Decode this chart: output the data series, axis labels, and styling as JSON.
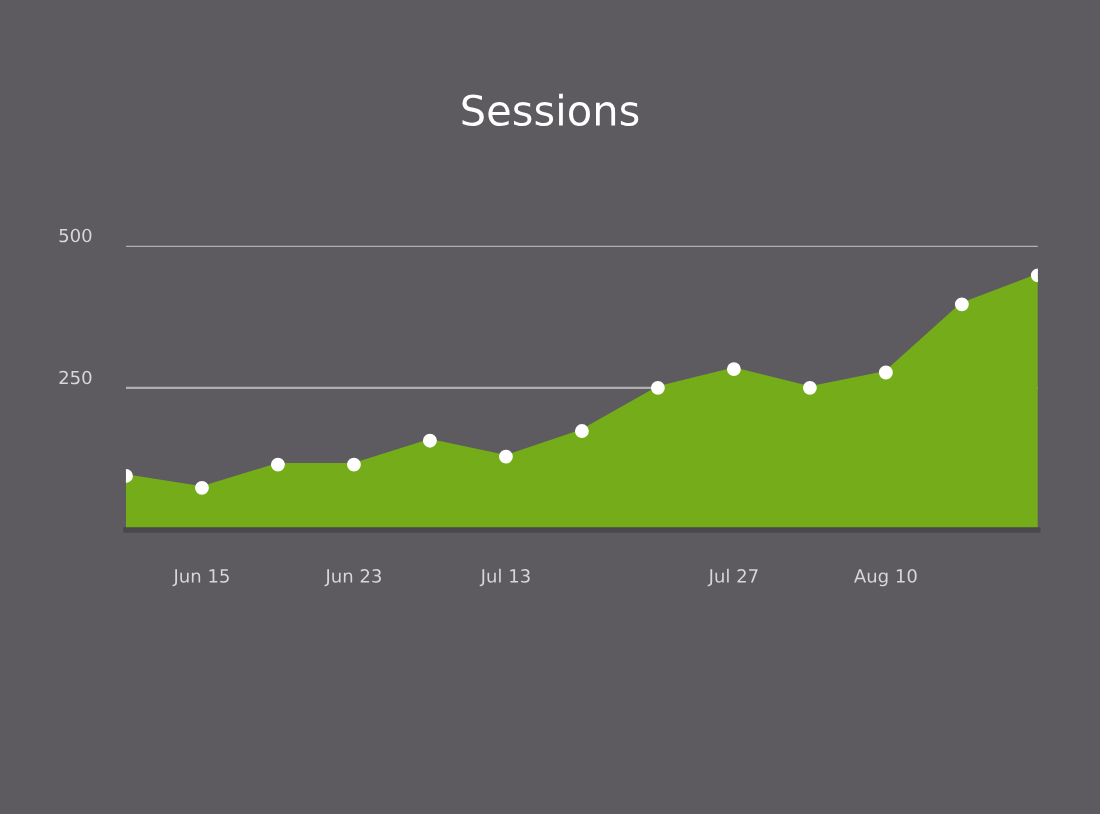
{
  "chart_data": {
    "type": "area",
    "title": "Sessions",
    "categories": [
      null,
      "Jun 15",
      null,
      "Jun 23",
      null,
      "Jul 13",
      null,
      null,
      "Jul 27",
      null,
      "Aug 10",
      null,
      null
    ],
    "series": [
      {
        "color": "#74ac1a",
        "values": [
          95,
          74,
          115,
          115,
          157,
          129,
          174,
          250,
          283,
          250,
          277,
          397,
          448
        ]
      }
    ],
    "ylim": [
      0,
      500
    ],
    "yticks": [
      250,
      500
    ],
    "grid": "y",
    "marker": "circle",
    "legend": false
  }
}
